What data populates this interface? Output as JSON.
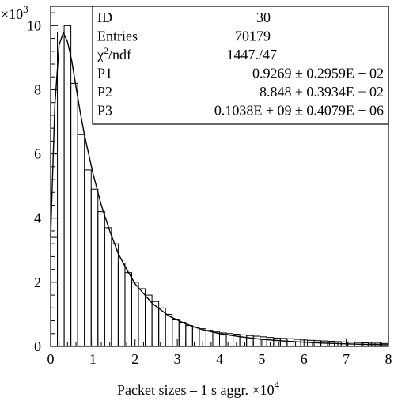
{
  "chart_data": {
    "type": "histogram",
    "title": "",
    "ylabel": "",
    "y_multiplier_label": "×10",
    "y_multiplier_exp": "3",
    "xlabel": "Packet sizes – 1 s aggr. ×10",
    "x_multiplier_exp": "4",
    "xlim": [
      0,
      8
    ],
    "ylim": [
      0,
      10.6
    ],
    "x_ticks": [
      0,
      1,
      2,
      3,
      4,
      5,
      6,
      7,
      8
    ],
    "x_tick_labels": [
      "0",
      "1",
      "2",
      "3",
      "4",
      "5",
      "6",
      "7",
      "8"
    ],
    "y_ticks": [
      0,
      2,
      4,
      6,
      8,
      10
    ],
    "y_tick_labels": [
      "0",
      "2",
      "4",
      "6",
      "8",
      "10"
    ],
    "bin_width": 0.16,
    "bin_start": 0,
    "histogram_values": [
      3.4,
      9.8,
      10.0,
      8.2,
      6.6,
      5.5,
      4.9,
      4.2,
      3.7,
      3.2,
      2.6,
      2.3,
      2.0,
      1.8,
      1.6,
      1.4,
      1.2,
      1.0,
      0.85,
      0.75,
      0.65,
      0.6,
      0.55,
      0.5,
      0.45,
      0.42,
      0.4,
      0.38,
      0.36,
      0.34,
      0.32,
      0.3,
      0.28,
      0.26,
      0.25,
      0.24,
      0.22,
      0.2,
      0.19,
      0.18,
      0.17,
      0.16,
      0.15,
      0.14,
      0.13,
      0.12,
      0.11,
      0.1,
      0.1,
      0.09
    ],
    "fit_curve": {
      "x": [
        0.0,
        0.1,
        0.2,
        0.3,
        0.4,
        0.5,
        0.6,
        0.7,
        0.8,
        1.0,
        1.2,
        1.4,
        1.6,
        1.8,
        2.0,
        2.4,
        2.8,
        3.2,
        3.6,
        4.0,
        4.5,
        5.0,
        5.5,
        6.0,
        6.5,
        7.0,
        7.5,
        8.0
      ],
      "y": [
        3.4,
        7.5,
        9.4,
        9.78,
        9.5,
        8.9,
        8.1,
        7.3,
        6.6,
        5.4,
        4.4,
        3.6,
        2.9,
        2.4,
        1.95,
        1.35,
        0.95,
        0.7,
        0.52,
        0.4,
        0.3,
        0.22,
        0.17,
        0.13,
        0.1,
        0.08,
        0.06,
        0.05
      ]
    },
    "stats_box": [
      {
        "label": "ID",
        "value": "30"
      },
      {
        "label": "Entries",
        "value": "70179"
      },
      {
        "label": "χ",
        "label_sup": "2",
        "label_rest": "/ndf",
        "value": "1447./47"
      },
      {
        "label": "P1",
        "value": "0.9269 ± 0.2959E − 02"
      },
      {
        "label": "P2",
        "value": "8.848 ± 0.3934E − 02"
      },
      {
        "label": "P3",
        "value": "0.1038E + 09 ± 0.4079E + 06"
      }
    ],
    "grid": false,
    "legend": "top-right"
  }
}
